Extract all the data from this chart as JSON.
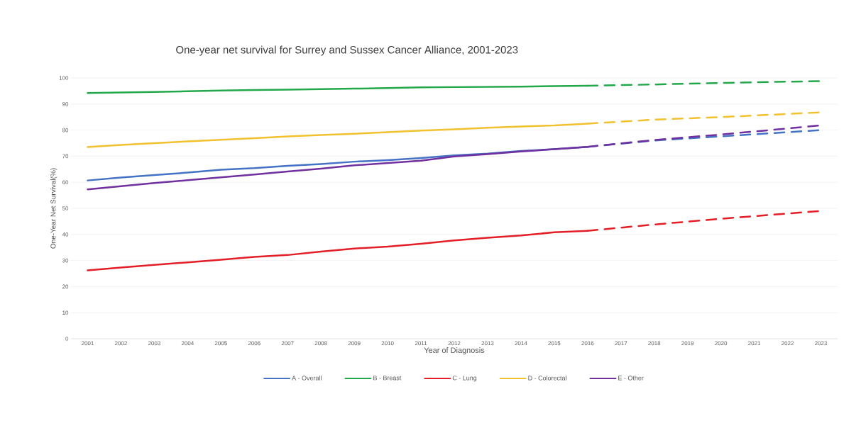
{
  "chart_data": {
    "type": "line",
    "title": "One-year net survival for Surrey and Sussex Cancer Alliance, 2001-2023",
    "xlabel": "Year of Diagnosis",
    "ylabel": "One-Year Net Survival(%)",
    "xlim": [
      2000.5,
      2023.5
    ],
    "xticks": [
      2001,
      2002,
      2003,
      2004,
      2005,
      2006,
      2007,
      2008,
      2009,
      2010,
      2011,
      2012,
      2013,
      2014,
      2015,
      2016,
      2017,
      2018,
      2019,
      2020,
      2021,
      2022,
      2023
    ],
    "ylim": [
      0,
      100
    ],
    "yticks": [
      0,
      10,
      20,
      30,
      40,
      50,
      60,
      70,
      80,
      90,
      100
    ],
    "grid": "y",
    "legend": "bottom",
    "series": [
      {
        "name": "A - Overall",
        "color": "#4472c4",
        "line_style": "solid",
        "x": [
          2001,
          2002,
          2003,
          2004,
          2005,
          2006,
          2007,
          2008,
          2009,
          2010,
          2011,
          2012,
          2013,
          2014,
          2015,
          2016
        ],
        "values": [
          60.7,
          61.8,
          62.8,
          63.7,
          64.8,
          65.4,
          66.3,
          67.0,
          67.9,
          68.5,
          69.3,
          70.3,
          71.0,
          72.0,
          72.7,
          73.6
        ]
      },
      {
        "name": "B - Breast",
        "color": "#22a84a",
        "line_style": "solid",
        "x": [
          2001,
          2002,
          2003,
          2004,
          2005,
          2006,
          2007,
          2008,
          2009,
          2010,
          2011,
          2012,
          2013,
          2014,
          2015,
          2016
        ],
        "values": [
          94.2,
          94.4,
          94.6,
          94.9,
          95.2,
          95.4,
          95.5,
          95.7,
          95.9,
          96.1,
          96.4,
          96.5,
          96.6,
          96.7,
          96.9,
          97.0
        ]
      },
      {
        "name": "C - Lung",
        "color": "#e41e26",
        "line_style": "solid",
        "x": [
          2001,
          2002,
          2003,
          2004,
          2005,
          2006,
          2007,
          2008,
          2009,
          2010,
          2011,
          2012,
          2013,
          2014,
          2015,
          2016
        ],
        "values": [
          26.2,
          27.3,
          28.3,
          29.3,
          30.3,
          31.4,
          32.1,
          33.4,
          34.6,
          35.3,
          36.4,
          37.7,
          38.7,
          39.6,
          40.8,
          41.4
        ]
      },
      {
        "name": "D - Colorectal",
        "color": "#f2c12e",
        "line_style": "solid",
        "x": [
          2001,
          2002,
          2003,
          2004,
          2005,
          2006,
          2007,
          2008,
          2009,
          2010,
          2011,
          2012,
          2013,
          2014,
          2015,
          2016
        ],
        "values": [
          73.5,
          74.3,
          75.0,
          75.7,
          76.3,
          76.9,
          77.6,
          78.1,
          78.6,
          79.2,
          79.8,
          80.3,
          80.9,
          81.4,
          81.8,
          82.5
        ]
      },
      {
        "name": "E - Other",
        "color": "#7030a0",
        "line_style": "solid",
        "x": [
          2001,
          2002,
          2003,
          2004,
          2005,
          2006,
          2007,
          2008,
          2009,
          2010,
          2011,
          2012,
          2013,
          2014,
          2015,
          2016
        ],
        "values": [
          57.3,
          58.5,
          59.7,
          60.8,
          61.9,
          63.0,
          64.1,
          65.2,
          66.5,
          67.4,
          68.3,
          69.9,
          70.8,
          71.8,
          72.7,
          73.6
        ]
      },
      {
        "color": "#4472c4",
        "line_style": "dashed",
        "x": [
          2016,
          2018,
          2020,
          2023
        ],
        "values": [
          73.6,
          76.0,
          77.6,
          80.0
        ]
      },
      {
        "color": "#22a84a",
        "line_style": "dashed",
        "x": [
          2016,
          2018,
          2020,
          2023
        ],
        "values": [
          97.0,
          97.5,
          98.1,
          98.8
        ]
      },
      {
        "color": "#e41e26",
        "line_style": "dashed",
        "x": [
          2016,
          2018,
          2020,
          2023
        ],
        "values": [
          41.4,
          43.8,
          46.0,
          49.0
        ]
      },
      {
        "color": "#f2c12e",
        "line_style": "dashed",
        "x": [
          2016,
          2018,
          2020,
          2023
        ],
        "values": [
          82.5,
          84.0,
          85.0,
          86.8
        ]
      },
      {
        "color": "#7030a0",
        "line_style": "dashed",
        "x": [
          2016,
          2018,
          2020,
          2023
        ],
        "values": [
          73.6,
          76.2,
          78.3,
          81.8
        ]
      }
    ]
  }
}
